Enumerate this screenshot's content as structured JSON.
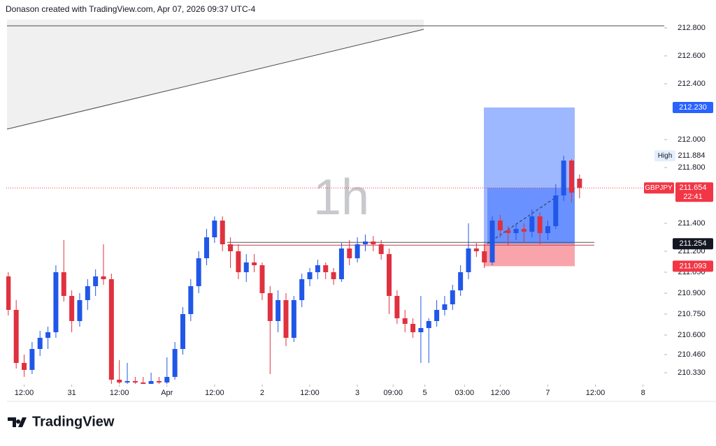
{
  "header": {
    "credit": "Donason created with TradingView.com, Apr 07, 2026 09:37 UTC-4"
  },
  "footer": {
    "brand": "TradingView"
  },
  "chart_data": {
    "type": "candlestick",
    "interval": "1h",
    "up_color": "#2157e8",
    "down_color": "#e0313f",
    "xlim": [
      -0.5,
      165
    ],
    "ylim": [
      210.25,
      212.86
    ],
    "xticks": [
      {
        "value": 4,
        "label": "12:00"
      },
      {
        "value": 16,
        "label": "31"
      },
      {
        "value": 28,
        "label": "12:00"
      },
      {
        "value": 40,
        "label": "Apr"
      },
      {
        "value": 52,
        "label": "12:00"
      },
      {
        "value": 64,
        "label": "2"
      },
      {
        "value": 76,
        "label": "12:00"
      },
      {
        "value": 88,
        "label": "3"
      },
      {
        "value": 97,
        "label": "09:00"
      },
      {
        "value": 105,
        "label": "5"
      },
      {
        "value": 115,
        "label": "03:00"
      },
      {
        "value": 124,
        "label": "12:00"
      },
      {
        "value": 136,
        "label": "7"
      },
      {
        "value": 148,
        "label": "12:00"
      },
      {
        "value": 160,
        "label": "8"
      }
    ],
    "yticks": [
      {
        "value": 212.8,
        "label": "212.800"
      },
      {
        "value": 212.6,
        "label": "212.600"
      },
      {
        "value": 212.4,
        "label": "212.400"
      },
      {
        "value": 212.0,
        "label": "212.000"
      },
      {
        "value": 211.8,
        "label": "211.800"
      },
      {
        "value": 211.4,
        "label": "211.400"
      },
      {
        "value": 211.2,
        "label": "211.200"
      },
      {
        "value": 211.05,
        "label": "211.050"
      },
      {
        "value": 210.9,
        "label": "210.900"
      },
      {
        "value": 210.75,
        "label": "210.750"
      },
      {
        "value": 210.6,
        "label": "210.600"
      },
      {
        "value": 210.46,
        "label": "210.460"
      },
      {
        "value": 210.33,
        "label": "210.330"
      }
    ],
    "x": [
      0,
      2,
      4,
      6,
      8,
      10,
      12,
      14,
      16,
      18,
      20,
      22,
      24,
      26,
      28,
      30,
      32,
      34,
      36,
      38,
      40,
      42,
      44,
      46,
      48,
      50,
      52,
      54,
      56,
      58,
      60,
      62,
      64,
      66,
      68,
      70,
      72,
      74,
      76,
      78,
      80,
      82,
      84,
      86,
      88,
      90,
      92,
      94,
      96,
      98,
      100,
      102,
      104,
      106,
      108,
      110,
      112,
      114,
      116,
      118,
      120,
      122,
      124,
      126,
      128,
      130,
      132,
      134,
      136,
      138,
      140,
      142,
      144
    ],
    "open": [
      211.02,
      210.78,
      210.4,
      210.35,
      210.5,
      210.58,
      210.62,
      211.05,
      210.88,
      210.7,
      210.85,
      210.95,
      211.02,
      211.0,
      210.28,
      210.26,
      210.27,
      210.26,
      210.25,
      210.27,
      210.26,
      210.3,
      210.5,
      210.75,
      210.95,
      211.15,
      211.3,
      211.42,
      211.25,
      211.2,
      211.05,
      211.12,
      211.1,
      210.9,
      210.7,
      210.85,
      210.58,
      210.85,
      211.0,
      211.05,
      211.1,
      211.05,
      211.0,
      211.22,
      211.15,
      211.25,
      211.27,
      211.25,
      211.18,
      210.88,
      210.72,
      210.68,
      210.62,
      210.65,
      210.7,
      210.78,
      210.82,
      210.92,
      211.05,
      211.22,
      211.2,
      211.12,
      211.42,
      211.35,
      211.33,
      211.36,
      211.34,
      211.45,
      211.33,
      211.38,
      211.6,
      211.85,
      211.72
    ],
    "high": [
      211.05,
      210.85,
      210.46,
      210.55,
      210.63,
      210.66,
      211.1,
      211.28,
      210.92,
      210.9,
      211.0,
      211.07,
      211.25,
      211.04,
      210.42,
      210.4,
      210.3,
      210.3,
      210.33,
      210.3,
      210.44,
      210.55,
      210.8,
      211.0,
      211.2,
      211.36,
      211.45,
      211.45,
      211.3,
      211.25,
      211.18,
      211.18,
      211.12,
      210.95,
      210.92,
      210.9,
      210.88,
      211.04,
      211.08,
      211.14,
      211.12,
      211.08,
      211.26,
      211.28,
      211.3,
      211.32,
      211.31,
      211.28,
      211.22,
      210.92,
      210.78,
      210.72,
      210.88,
      210.72,
      210.85,
      210.88,
      210.96,
      211.1,
      211.4,
      211.26,
      211.25,
      211.45,
      211.46,
      211.38,
      211.4,
      211.4,
      211.5,
      211.48,
      211.42,
      211.68,
      211.884,
      211.86,
      211.75
    ],
    "low": [
      210.74,
      210.36,
      210.3,
      210.32,
      210.45,
      210.5,
      210.58,
      210.84,
      210.62,
      210.66,
      210.78,
      210.88,
      210.96,
      210.25,
      210.25,
      210.25,
      210.25,
      210.25,
      210.25,
      210.25,
      210.25,
      210.28,
      210.46,
      210.7,
      210.9,
      211.1,
      211.26,
      211.2,
      211.08,
      211.0,
      210.98,
      211.05,
      210.85,
      210.32,
      210.62,
      210.52,
      210.55,
      210.8,
      210.95,
      211.0,
      211.0,
      210.96,
      210.98,
      211.1,
      211.12,
      211.2,
      211.2,
      211.14,
      210.75,
      210.68,
      210.62,
      210.58,
      210.4,
      210.4,
      210.66,
      210.74,
      210.78,
      210.88,
      211.0,
      211.16,
      211.08,
      211.1,
      211.3,
      211.24,
      211.28,
      211.26,
      211.3,
      211.25,
      211.28,
      211.36,
      211.56,
      211.55,
      211.58
    ],
    "close": [
      210.78,
      210.4,
      210.35,
      210.5,
      210.58,
      210.62,
      211.05,
      210.88,
      210.7,
      210.85,
      210.95,
      211.02,
      211.0,
      210.28,
      210.26,
      210.27,
      210.26,
      210.25,
      210.27,
      210.26,
      210.3,
      210.5,
      210.75,
      210.95,
      211.15,
      211.3,
      211.42,
      211.25,
      211.2,
      211.05,
      211.12,
      211.1,
      210.9,
      210.7,
      210.85,
      210.58,
      210.85,
      211.0,
      211.05,
      211.1,
      211.05,
      211.0,
      211.22,
      211.15,
      211.25,
      211.27,
      211.25,
      211.18,
      210.88,
      210.72,
      210.68,
      210.62,
      210.65,
      210.7,
      210.78,
      210.82,
      210.92,
      211.05,
      211.22,
      211.2,
      211.12,
      211.42,
      211.35,
      211.33,
      211.36,
      211.34,
      211.45,
      211.33,
      211.38,
      211.6,
      211.85,
      211.62,
      211.654
    ],
    "position": {
      "target": {
        "value": 212.23,
        "label": "212.230",
        "color": "#2962ff"
      },
      "entry": {
        "value": 211.254,
        "label": "211.254",
        "color": "#131722"
      },
      "stop": {
        "value": 211.093,
        "label": "211.093",
        "color": "#f23645"
      }
    },
    "high_marker": {
      "value": 211.884,
      "label": "211.884",
      "tag": "High"
    },
    "last_price": {
      "value": 211.654,
      "label": "211.654",
      "symbol": "GBPJPY",
      "countdown": "22:41",
      "color": "#f23645"
    }
  }
}
